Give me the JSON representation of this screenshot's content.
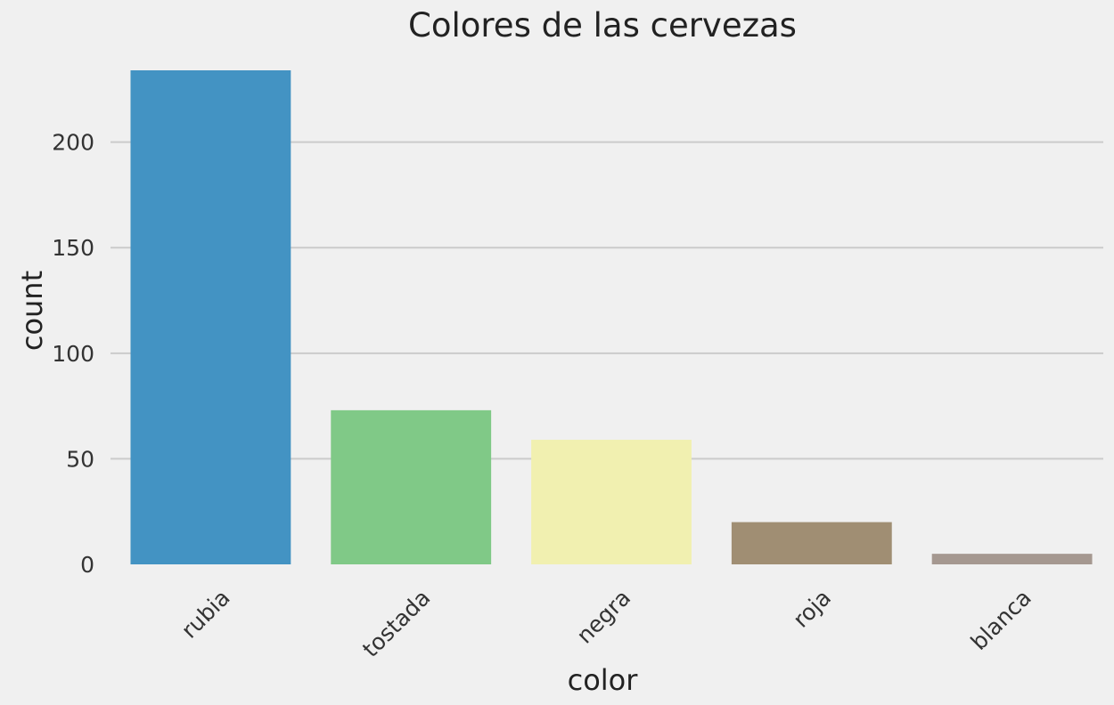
{
  "chart_data": {
    "type": "bar",
    "title": "Colores de las cervezas",
    "xlabel": "color",
    "ylabel": "count",
    "categories": [
      "rubia",
      "tostada",
      "negra",
      "roja",
      "blanca"
    ],
    "values": [
      234,
      73,
      59,
      20,
      5
    ],
    "colors": [
      "#4393c3",
      "#80c987",
      "#f1f0b0",
      "#a08e73",
      "#a59890"
    ],
    "ylim": [
      0,
      234
    ],
    "yticks": [
      0,
      50,
      100,
      150,
      200
    ],
    "grid": true,
    "background": "#f0f0f0"
  }
}
